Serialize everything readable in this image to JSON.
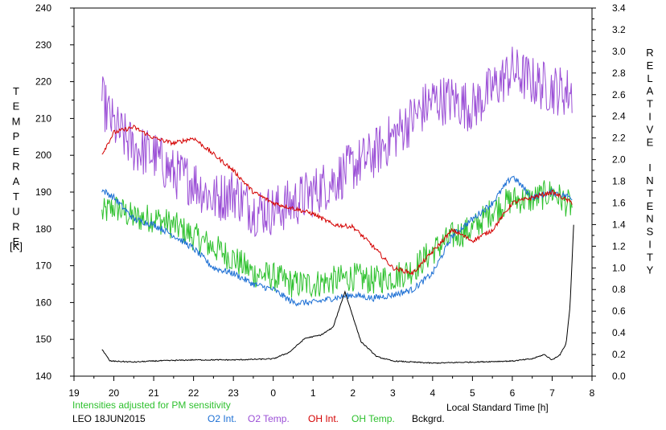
{
  "chart_data": {
    "type": "line",
    "ylabel_left_letters": [
      "T",
      "E",
      "M",
      "P",
      "E",
      "R",
      "A",
      "T",
      "U",
      "R",
      "E"
    ],
    "ylabel_left_unit": "[K]",
    "ylabel_right_letters": [
      "R",
      "E",
      "L",
      "A",
      "T",
      "I",
      "V",
      "E",
      "",
      "I",
      "N",
      "T",
      "E",
      "N",
      "S",
      "I",
      "T",
      "Y"
    ],
    "xlabel": "Local Standard Time [h]",
    "note": "Intensities adjusted for PM sensitivity",
    "station_date": "LEO 18JUN2015",
    "xlim": [
      19,
      8
    ],
    "x_ticks": [
      "19",
      "20",
      "21",
      "22",
      "23",
      "0",
      "1",
      "2",
      "3",
      "4",
      "5",
      "6",
      "7",
      "8"
    ],
    "ylim_left": [
      140,
      240
    ],
    "y_ticks_left": [
      "140",
      "150",
      "160",
      "170",
      "180",
      "190",
      "200",
      "210",
      "220",
      "230",
      "240"
    ],
    "ylim_right": [
      0.0,
      3.4
    ],
    "y_ticks_right": [
      "0.0",
      "0.2",
      "0.4",
      "0.6",
      "0.8",
      "1.0",
      "1.2",
      "1.4",
      "1.6",
      "1.8",
      "2.0",
      "2.2",
      "2.4",
      "2.6",
      "2.8",
      "3.0",
      "3.2",
      "3.4"
    ],
    "series": [
      {
        "name": "O2 Int.",
        "axis": "right",
        "color": "#1c6fd4",
        "noise": 0.03,
        "x": [
          19.7,
          20.0,
          20.5,
          21.0,
          21.5,
          22.0,
          22.5,
          23.0,
          23.5,
          24.0,
          24.5,
          25.0,
          25.5,
          26.0,
          26.5,
          27.0,
          27.5,
          28.0,
          28.5,
          29.0,
          29.5,
          30.0,
          30.5,
          31.0,
          31.5
        ],
        "y": [
          1.72,
          1.65,
          1.45,
          1.4,
          1.3,
          1.18,
          1.0,
          0.95,
          0.85,
          0.8,
          0.68,
          0.68,
          0.72,
          0.75,
          0.72,
          0.75,
          0.8,
          0.95,
          1.3,
          1.45,
          1.6,
          1.85,
          1.65,
          1.7,
          1.65
        ]
      },
      {
        "name": "O2 Temp.",
        "axis": "left",
        "color": "#9b4fd6",
        "noise": 7,
        "x": [
          19.7,
          20.0,
          20.5,
          21.0,
          21.5,
          22.0,
          22.5,
          23.0,
          23.5,
          24.0,
          24.5,
          25.0,
          25.5,
          26.0,
          26.5,
          27.0,
          27.5,
          28.0,
          28.5,
          29.0,
          29.5,
          30.0,
          30.5,
          31.0,
          31.5
        ],
        "y": [
          215,
          208,
          202,
          200,
          195,
          193,
          188,
          190,
          185,
          185,
          187,
          190,
          193,
          197,
          200,
          205,
          210,
          215,
          215,
          213,
          218,
          223,
          220,
          218,
          217
        ]
      },
      {
        "name": "OH Int.",
        "axis": "right",
        "color": "#d40000",
        "noise": 0.02,
        "x": [
          19.7,
          20.0,
          20.5,
          21.0,
          21.5,
          22.0,
          22.5,
          23.0,
          23.5,
          24.0,
          24.5,
          25.0,
          25.5,
          26.0,
          26.5,
          27.0,
          27.5,
          28.0,
          28.5,
          29.0,
          29.5,
          30.0,
          30.5,
          31.0,
          31.5
        ],
        "y": [
          2.05,
          2.25,
          2.3,
          2.2,
          2.15,
          2.2,
          2.05,
          1.9,
          1.7,
          1.6,
          1.55,
          1.5,
          1.4,
          1.38,
          1.2,
          1.0,
          0.95,
          1.15,
          1.35,
          1.25,
          1.35,
          1.6,
          1.65,
          1.7,
          1.6
        ]
      },
      {
        "name": "OH Temp.",
        "axis": "left",
        "color": "#2ec12e",
        "noise": 4,
        "x": [
          19.7,
          20.0,
          20.5,
          21.0,
          21.5,
          22.0,
          22.5,
          23.0,
          23.5,
          24.0,
          24.5,
          25.0,
          25.5,
          26.0,
          26.5,
          27.0,
          27.5,
          28.0,
          28.5,
          29.0,
          29.5,
          30.0,
          30.5,
          31.0,
          31.5
        ],
        "y": [
          184,
          186,
          183,
          183,
          181,
          178,
          175,
          172,
          168,
          167,
          165,
          165,
          166,
          167,
          166,
          167,
          169,
          174,
          178,
          180,
          185,
          188,
          188,
          190,
          186
        ]
      },
      {
        "name": "Bckgrd.",
        "axis": "right",
        "color": "#000000",
        "noise": 0.005,
        "x": [
          19.7,
          19.9,
          20.5,
          21.0,
          22.0,
          23.0,
          24.0,
          24.4,
          24.8,
          25.2,
          25.5,
          25.8,
          26.2,
          26.6,
          27.0,
          27.5,
          28.0,
          29.0,
          30.0,
          30.5,
          30.8,
          31.0,
          31.2,
          31.35,
          31.45,
          31.55
        ],
        "y": [
          0.25,
          0.14,
          0.13,
          0.14,
          0.15,
          0.15,
          0.16,
          0.22,
          0.35,
          0.38,
          0.45,
          0.78,
          0.32,
          0.18,
          0.14,
          0.13,
          0.12,
          0.13,
          0.14,
          0.16,
          0.2,
          0.15,
          0.2,
          0.3,
          0.65,
          1.48
        ]
      }
    ]
  }
}
